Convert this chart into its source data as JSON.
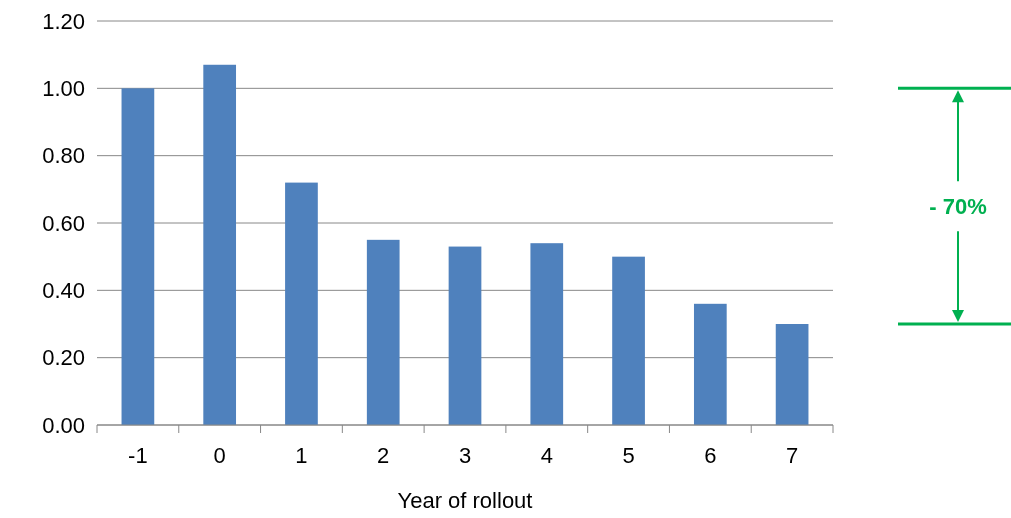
{
  "chart_data": {
    "type": "bar",
    "xlabel": "Year of rollout",
    "categories": [
      "-1",
      "0",
      "1",
      "2",
      "3",
      "4",
      "5",
      "6",
      "7"
    ],
    "values": [
      1.0,
      1.07,
      0.72,
      0.55,
      0.53,
      0.54,
      0.5,
      0.36,
      0.3
    ],
    "color": "#4f81bd",
    "ylim": [
      0,
      1.2
    ],
    "yticks": [
      {
        "value": 0,
        "label": "0.00"
      },
      {
        "value": 0.2,
        "label": "0.20"
      },
      {
        "value": 0.4,
        "label": "0.40"
      },
      {
        "value": 0.6,
        "label": "0.60"
      },
      {
        "value": 0.8,
        "label": "0.80"
      },
      {
        "value": 1,
        "label": "1.00"
      },
      {
        "value": 1.2,
        "label": "1.20"
      }
    ],
    "grid": "y",
    "annotations": [
      "- 70%"
    ]
  }
}
